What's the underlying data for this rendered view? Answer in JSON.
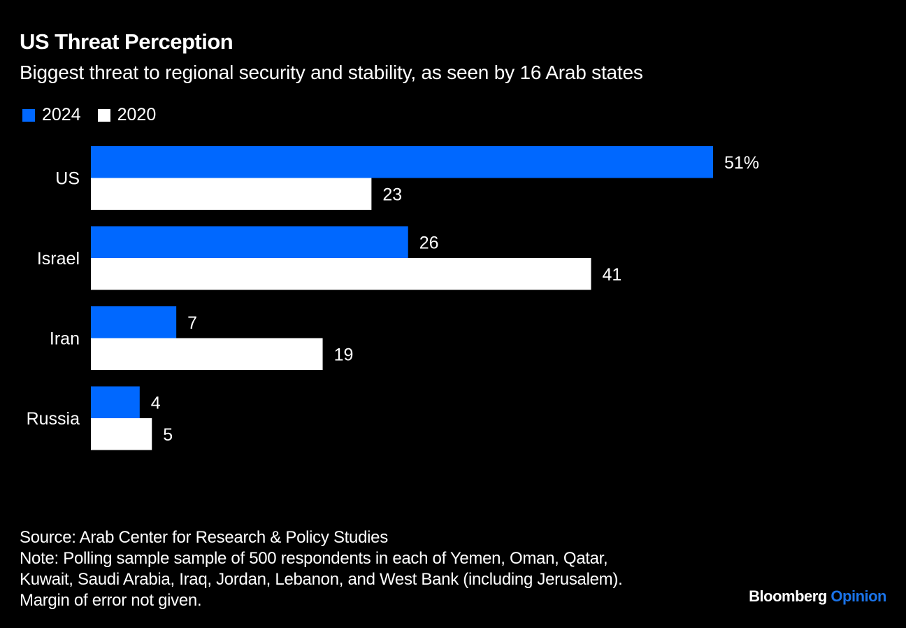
{
  "header": {
    "title": "US Threat Perception",
    "subtitle": "Biggest threat to regional security and stability, as seen by 16 Arab states"
  },
  "colors": {
    "series_2024": "#0068ff",
    "series_2020": "#ffffff",
    "background": "#000000",
    "brand_accent": "#1a73e8"
  },
  "chart_data": {
    "type": "bar",
    "orientation": "horizontal",
    "title": "US Threat Perception",
    "subtitle": "Biggest threat to regional security and stability, as seen by 16 Arab states",
    "categories": [
      "US",
      "Israel",
      "Iran",
      "Russia"
    ],
    "series": [
      {
        "name": "2024",
        "values": [
          51,
          26,
          7,
          4
        ],
        "labels": [
          "51%",
          "26",
          "7",
          "4"
        ]
      },
      {
        "name": "2020",
        "values": [
          23,
          41,
          19,
          5
        ],
        "labels": [
          "23",
          "41",
          "19",
          "5"
        ]
      }
    ],
    "xlabel": "",
    "ylabel": "",
    "xlim": [
      0,
      51
    ],
    "unit": "%",
    "grid": false,
    "legend": "top-left"
  },
  "footer": {
    "source": "Source: Arab Center for Research & Policy Studies",
    "note_lines": [
      "Note: Polling sample sample of 500 respondents in each of Yemen, Oman, Qatar,",
      "Kuwait, Saudi Arabia, Iraq, Jordan, Lebanon, and West Bank (including Jerusalem).",
      "Margin of error not given."
    ],
    "brand_main": "Bloomberg",
    "brand_accent": "Opinion"
  }
}
